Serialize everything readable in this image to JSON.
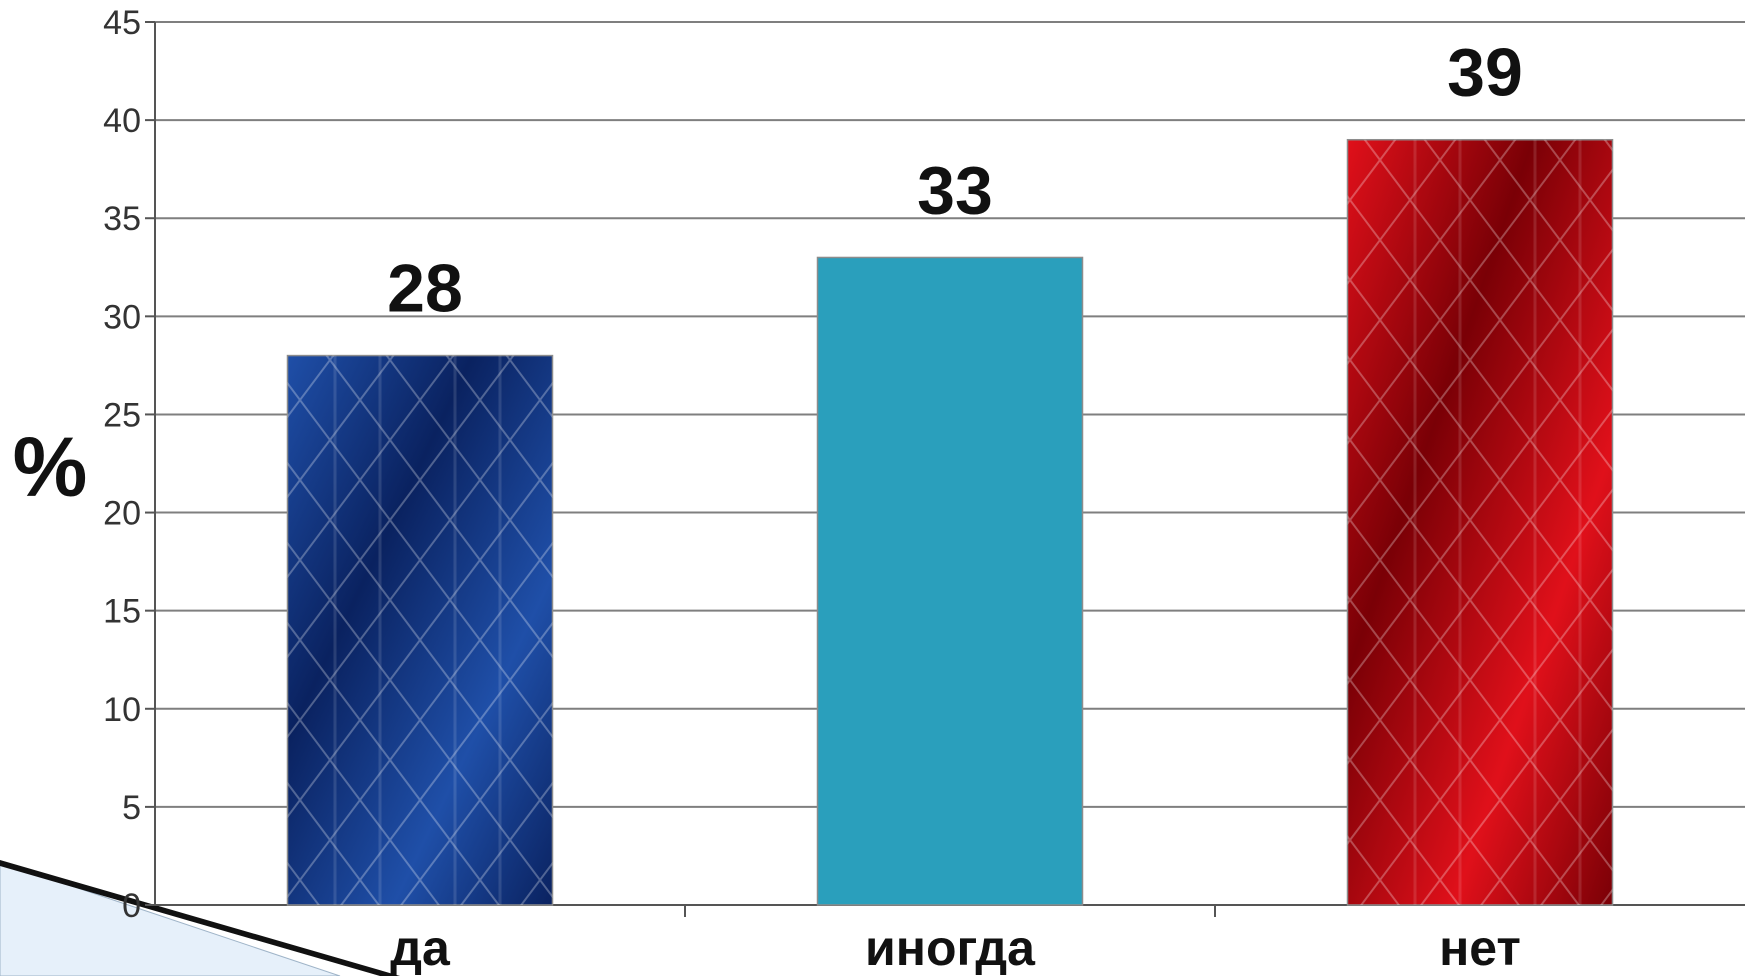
{
  "chart_data": {
    "type": "bar",
    "categories": [
      "да",
      "иногда",
      "нет"
    ],
    "values": [
      28,
      33,
      39
    ],
    "value_labels": [
      "28",
      "33",
      "39"
    ],
    "title": "",
    "xlabel": "",
    "ylabel": "%",
    "ylim": [
      0,
      45
    ],
    "yticks": [
      0,
      5,
      10,
      15,
      20,
      25,
      30,
      35,
      40,
      45
    ],
    "grid": true,
    "legend": "none",
    "bar_colors": [
      "#1f4fa8",
      "#2a9fbc",
      "#e0101a"
    ],
    "bar_dark_colors": [
      "#0a2260",
      "#2a9fbc",
      "#7a0006"
    ],
    "bar_texture": [
      "worn-blue",
      "solid",
      "worn-red"
    ]
  }
}
